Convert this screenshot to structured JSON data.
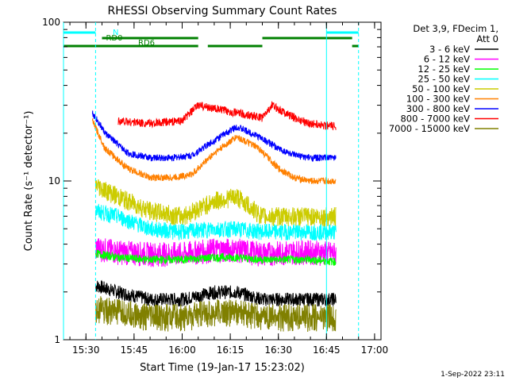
{
  "chart_data": {
    "type": "line",
    "title": "RHESSI Observing Summary Count Rates",
    "xlabel": "Start Time (19-Jan-17 15:23:02)",
    "ylabel": "Count Rate (s⁻¹ detector⁻¹)",
    "y_scale": "log",
    "ylim": [
      1,
      100
    ],
    "xlim": [
      "15:23",
      "17:02"
    ],
    "x_ticks": [
      "15:30",
      "15:45",
      "16:00",
      "16:15",
      "16:30",
      "16:45",
      "17:00"
    ],
    "y_ticks": [
      "1",
      "10",
      "100"
    ],
    "legend_position": "right",
    "legend_header": [
      "Det 3,9, FDecim 1,",
      "Att 0"
    ],
    "series": [
      {
        "name": "3 - 6 keV",
        "color": "#000000",
        "x": [
          "15:33",
          "15:40",
          "15:50",
          "16:00",
          "16:10",
          "16:17",
          "16:25",
          "16:35",
          "16:40",
          "16:48"
        ],
        "y": [
          2.2,
          2.0,
          1.8,
          1.8,
          2.0,
          2.0,
          1.8,
          1.8,
          1.8,
          1.8
        ]
      },
      {
        "name": "6 - 12 keV",
        "color": "#ff00ff",
        "x": [
          "15:33",
          "15:40",
          "15:50",
          "16:00",
          "16:10",
          "16:17",
          "16:25",
          "16:35",
          "16:40",
          "16:48"
        ],
        "y": [
          3.8,
          3.6,
          3.5,
          3.5,
          3.7,
          3.7,
          3.5,
          3.6,
          3.6,
          3.5
        ]
      },
      {
        "name": "12 - 25 keV",
        "color": "#00ff00",
        "x": [
          "15:33",
          "15:40",
          "15:50",
          "16:00",
          "16:10",
          "16:17",
          "16:25",
          "16:35",
          "16:40",
          "16:48"
        ],
        "y": [
          3.5,
          3.3,
          3.2,
          3.2,
          3.3,
          3.3,
          3.2,
          3.2,
          3.2,
          3.1
        ]
      },
      {
        "name": "25 - 50 keV",
        "color": "#00ffff",
        "x": [
          "15:33",
          "15:40",
          "15:50",
          "16:00",
          "16:10",
          "16:17",
          "16:25",
          "16:35",
          "16:40",
          "16:48"
        ],
        "y": [
          6.5,
          6.0,
          5.0,
          4.8,
          5.0,
          5.0,
          4.8,
          4.8,
          4.8,
          4.8
        ]
      },
      {
        "name": "50 - 100 keV",
        "color": "#cccc00",
        "x": [
          "15:33",
          "15:40",
          "15:50",
          "16:00",
          "16:10",
          "16:17",
          "16:25",
          "16:35",
          "16:40",
          "16:48"
        ],
        "y": [
          9.5,
          8.0,
          6.5,
          6.0,
          7.5,
          8.0,
          6.0,
          6.0,
          6.0,
          6.0
        ]
      },
      {
        "name": "100 - 300 keV",
        "color": "#ff8000",
        "x": [
          "15:32",
          "15:36",
          "15:43",
          "15:50",
          "15:57",
          "16:03",
          "16:10",
          "16:17",
          "16:24",
          "16:30",
          "16:35",
          "16:40",
          "16:45",
          "16:48"
        ],
        "y": [
          24,
          16,
          12,
          10.5,
          10.5,
          11,
          15,
          19,
          16,
          12,
          10.5,
          10.0,
          10.0,
          10.0
        ]
      },
      {
        "name": "300 - 800 keV",
        "color": "#0000ff",
        "x": [
          "15:32",
          "15:36",
          "15:43",
          "15:50",
          "15:57",
          "16:03",
          "16:10",
          "16:17",
          "16:24",
          "16:30",
          "16:35",
          "16:40",
          "16:45",
          "16:48"
        ],
        "y": [
          27,
          20,
          15,
          14,
          14,
          14.5,
          18,
          22,
          19,
          16,
          14.5,
          14,
          14,
          14
        ]
      },
      {
        "name": "800 - 7000 keV",
        "color": "#ff0000",
        "x": [
          "15:40",
          "15:50",
          "16:00",
          "16:05",
          "16:25",
          "16:28",
          "16:35",
          "16:40",
          "16:48"
        ],
        "y": [
          24,
          23,
          24,
          30,
          25,
          30,
          25,
          23,
          22
        ]
      },
      {
        "name": "7000 - 15000 keV",
        "color": "#808000",
        "x": [
          "15:33",
          "15:40",
          "15:50",
          "16:00",
          "16:10",
          "16:17",
          "16:25",
          "16:35",
          "16:40",
          "16:48"
        ],
        "y": [
          1.6,
          1.5,
          1.4,
          1.4,
          1.5,
          1.5,
          1.4,
          1.4,
          1.4,
          1.4
        ]
      }
    ],
    "annotations": [
      {
        "label": "N",
        "color": "#00ffff",
        "segments": [
          [
            "15:23",
            "15:33"
          ],
          [
            "16:45",
            "16:55"
          ]
        ]
      },
      {
        "label": "RD0",
        "color": "#008000",
        "segments": [
          [
            "15:35",
            "16:05"
          ],
          [
            "16:25",
            "16:53"
          ]
        ]
      },
      {
        "label": "RD6",
        "color": "#008000",
        "segments": [
          [
            "15:23",
            "16:05"
          ],
          [
            "16:08",
            "16:25"
          ],
          [
            "16:53",
            "16:55"
          ]
        ]
      }
    ],
    "vertical_lines": [
      {
        "x": "15:23",
        "style": "solid",
        "color": "#00ffff"
      },
      {
        "x": "15:33",
        "style": "dashed",
        "color": "#00ffff"
      },
      {
        "x": "16:45",
        "style": "solid",
        "color": "#00ffff"
      },
      {
        "x": "16:55",
        "style": "dashed",
        "color": "#00ffff"
      }
    ],
    "footer": "1-Sep-2022 23:11"
  }
}
